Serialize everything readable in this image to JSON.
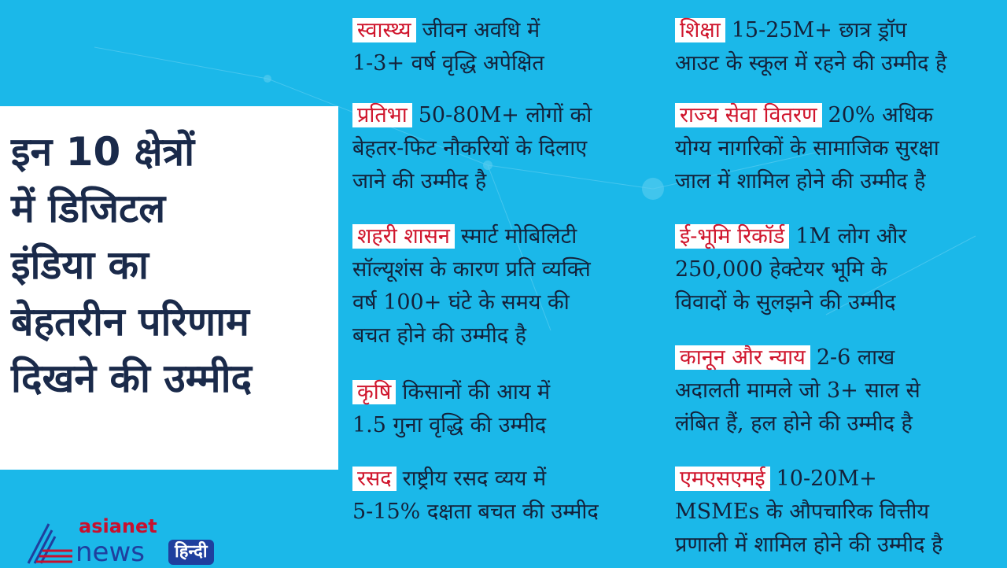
{
  "title_lines": [
    "इन 10 क्षेत्रों",
    "में डिजिटल",
    "इंडिया का",
    "बेहतरीन परिणाम",
    "दिखने की उम्मीद"
  ],
  "colors": {
    "background": "#1bb8e9",
    "label": "#d0152c",
    "text": "#14213a",
    "logo_blue": "#1f3f9e",
    "logo_red": "#c8102e"
  },
  "items": [
    {
      "label": "स्वास्थ्य",
      "lines": [
        "जीवन अवधि में",
        "1-3+ वर्ष वृद्धि अपेक्षित"
      ]
    },
    {
      "label": "प्रतिभा",
      "lines": [
        "50-80M+ लोगों को",
        "बेहतर-फिट नौकरियों के दिलाए",
        "जाने की उम्मीद है"
      ]
    },
    {
      "label": "शहरी शासन",
      "lines": [
        "स्मार्ट मोबिलिटी",
        "सॉल्यूशंस के कारण प्रति व्यक्ति",
        "वर्ष 100+ घंटे के समय की",
        "बचत होने की उम्मीद है"
      ]
    },
    {
      "label": "कृषि",
      "lines": [
        "किसानों की आय में",
        "1.5 गुना वृद्धि की उम्मीद"
      ]
    },
    {
      "label": "रसद",
      "lines": [
        "राष्ट्रीय रसद व्यय में",
        "5-15% दक्षता बचत की उम्मीद"
      ]
    },
    {
      "label": "शिक्षा",
      "lines": [
        "15-25M+ छात्र ड्रॉप",
        "आउट के स्कूल में रहने की उम्मीद है"
      ]
    },
    {
      "label": "राज्य सेवा वितरण",
      "lines": [
        "20% अधिक",
        "योग्य नागरिकों के सामाजिक सुरक्षा",
        "जाल में शामिल होने की उम्मीद है"
      ]
    },
    {
      "label": "ई-भूमि रिकॉर्ड",
      "lines": [
        "1M लोग और",
        "250,000 हेक्टेयर भूमि के",
        "विवादों के सुलझने की उम्मीद"
      ]
    },
    {
      "label": "कानून और न्याय",
      "lines": [
        "2-6 लाख",
        "अदालती मामले जो 3+ साल से",
        "लंबित हैं, हल होने की उम्मीद है"
      ]
    },
    {
      "label": "एमएसएमई",
      "lines": [
        "10-20M+",
        "MSMEs के औपचारिक वित्तीय",
        "प्रणाली में शामिल होने की उम्मीद है"
      ]
    }
  ],
  "logo": {
    "top": "asianet",
    "bottom": "news",
    "badge": "हिन्दी"
  }
}
